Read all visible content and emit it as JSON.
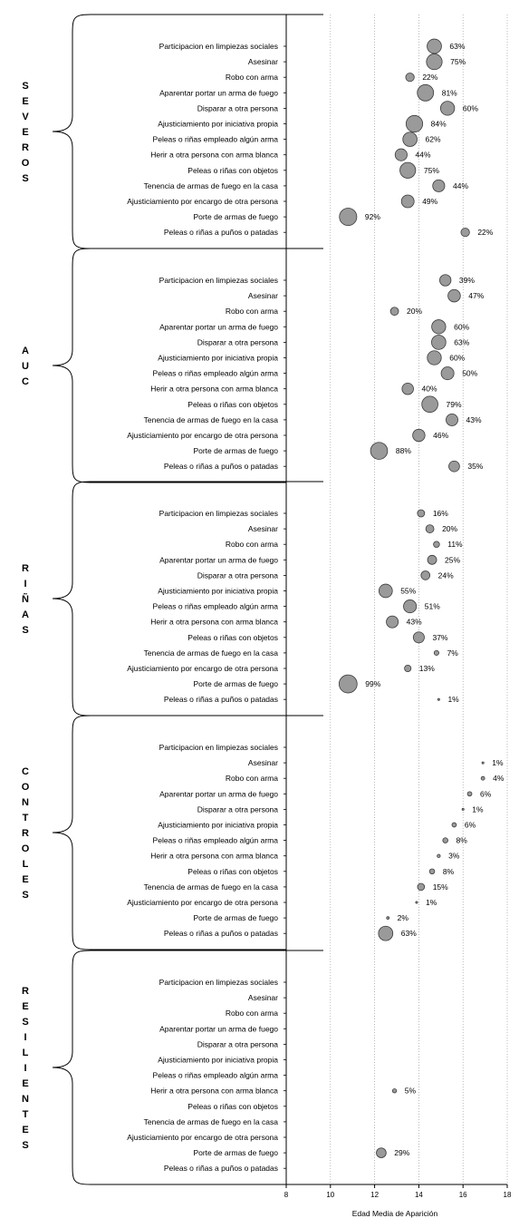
{
  "chart_data": {
    "type": "scatter",
    "xlabel": "Edad Media de Aparición",
    "xlim": [
      8,
      18
    ],
    "xticks": [
      "8",
      "10",
      "12",
      "14",
      "16",
      "18"
    ],
    "grid": "vertical-dotted",
    "categories": [
      "Participacion en limpiezas sociales",
      "Asesinar",
      "Robo con arma",
      "Aparentar portar un arma de fuego",
      "Disparar a otra persona",
      "Ajusticiamiento por iniciativa propia",
      "Peleas o riñas empleado algún arma",
      "Herir a otra persona con arma blanca",
      "Peleas o riñas con objetos",
      "Tenencia de armas de fuego en la casa",
      "Ajusticiamiento por encargo de otra persona",
      "Porte de armas de fuego",
      "Peleas o riñas a puños o patadas"
    ],
    "groups": [
      {
        "name": "SEVEROS",
        "letters": [
          "S",
          "E",
          "V",
          "E",
          "R",
          "O",
          "S"
        ],
        "points": [
          {
            "x": 14.7,
            "pct": 63,
            "label": "63%"
          },
          {
            "x": 14.7,
            "pct": 75,
            "label": "75%"
          },
          {
            "x": 13.6,
            "pct": 22,
            "label": "22%"
          },
          {
            "x": 14.3,
            "pct": 81,
            "label": "81%"
          },
          {
            "x": 15.3,
            "pct": 60,
            "label": "60%"
          },
          {
            "x": 13.8,
            "pct": 84,
            "label": "84%"
          },
          {
            "x": 13.6,
            "pct": 62,
            "label": "62%"
          },
          {
            "x": 13.2,
            "pct": 44,
            "label": "44%"
          },
          {
            "x": 13.5,
            "pct": 75,
            "label": "75%"
          },
          {
            "x": 14.9,
            "pct": 44,
            "label": "44%"
          },
          {
            "x": 13.5,
            "pct": 49,
            "label": "49%"
          },
          {
            "x": 10.8,
            "pct": 92,
            "label": "92%"
          },
          {
            "x": 16.1,
            "pct": 22,
            "label": "22%"
          }
        ]
      },
      {
        "name": "AUC",
        "letters": [
          "A",
          "U",
          "C"
        ],
        "points": [
          {
            "x": 15.2,
            "pct": 39,
            "label": "39%"
          },
          {
            "x": 15.6,
            "pct": 47,
            "label": "47%"
          },
          {
            "x": 12.9,
            "pct": 20,
            "label": "20%"
          },
          {
            "x": 14.9,
            "pct": 60,
            "label": "60%"
          },
          {
            "x": 14.9,
            "pct": 63,
            "label": "63%"
          },
          {
            "x": 14.7,
            "pct": 60,
            "label": "60%"
          },
          {
            "x": 15.3,
            "pct": 50,
            "label": "50%"
          },
          {
            "x": 13.5,
            "pct": 40,
            "label": "40%"
          },
          {
            "x": 14.5,
            "pct": 79,
            "label": "79%"
          },
          {
            "x": 15.5,
            "pct": 43,
            "label": "43%"
          },
          {
            "x": 14.0,
            "pct": 46,
            "label": "46%"
          },
          {
            "x": 12.2,
            "pct": 88,
            "label": "88%"
          },
          {
            "x": 15.6,
            "pct": 35,
            "label": "35%"
          }
        ]
      },
      {
        "name": "RIÑAS",
        "letters": [
          "R",
          "I",
          "Ñ",
          "A",
          "S"
        ],
        "points": [
          {
            "x": 14.1,
            "pct": 16,
            "label": "16%"
          },
          {
            "x": 14.5,
            "pct": 20,
            "label": "20%"
          },
          {
            "x": 14.8,
            "pct": 11,
            "label": "11%"
          },
          {
            "x": 14.6,
            "pct": 25,
            "label": "25%"
          },
          {
            "x": 14.3,
            "pct": 24,
            "label": "24%"
          },
          {
            "x": 12.5,
            "pct": 55,
            "label": "55%"
          },
          {
            "x": 13.6,
            "pct": 51,
            "label": "51%"
          },
          {
            "x": 12.8,
            "pct": 43,
            "label": "43%"
          },
          {
            "x": 14.0,
            "pct": 37,
            "label": "37%"
          },
          {
            "x": 14.8,
            "pct": 7,
            "label": "7%"
          },
          {
            "x": 13.5,
            "pct": 13,
            "label": "13%"
          },
          {
            "x": 10.8,
            "pct": 99,
            "label": "99%"
          },
          {
            "x": 14.9,
            "pct": 1,
            "label": "1%"
          }
        ]
      },
      {
        "name": "CONTROLES",
        "letters": [
          "C",
          "O",
          "N",
          "T",
          "R",
          "O",
          "L",
          "E",
          "S"
        ],
        "points": [
          null,
          {
            "x": 16.9,
            "pct": 1,
            "label": "1%"
          },
          {
            "x": 16.9,
            "pct": 4,
            "label": "4%"
          },
          {
            "x": 16.3,
            "pct": 6,
            "label": "6%"
          },
          {
            "x": 16.0,
            "pct": 1,
            "label": "1%"
          },
          {
            "x": 15.6,
            "pct": 6,
            "label": "6%"
          },
          {
            "x": 15.2,
            "pct": 8,
            "label": "8%"
          },
          {
            "x": 14.9,
            "pct": 3,
            "label": "3%"
          },
          {
            "x": 14.6,
            "pct": 8,
            "label": "8%"
          },
          {
            "x": 14.1,
            "pct": 15,
            "label": "15%"
          },
          {
            "x": 13.9,
            "pct": 1,
            "label": "1%"
          },
          {
            "x": 12.6,
            "pct": 2,
            "label": "2%"
          },
          {
            "x": 12.5,
            "pct": 63,
            "label": "63%"
          }
        ]
      },
      {
        "name": "RESILIENTES",
        "letters": [
          "R",
          "E",
          "S",
          "I",
          "L",
          "I",
          "E",
          "N",
          "T",
          "E",
          "S"
        ],
        "points": [
          null,
          null,
          null,
          null,
          null,
          null,
          null,
          {
            "x": 12.9,
            "pct": 5,
            "label": "5%"
          },
          null,
          null,
          null,
          {
            "x": 12.3,
            "pct": 29,
            "label": "29%"
          },
          null
        ]
      }
    ]
  },
  "colors": {
    "bubble_fill": "#9a9a9a",
    "bubble_stroke": "#3a3a3a",
    "text": "#000000",
    "grid": "#9a9a9a"
  }
}
